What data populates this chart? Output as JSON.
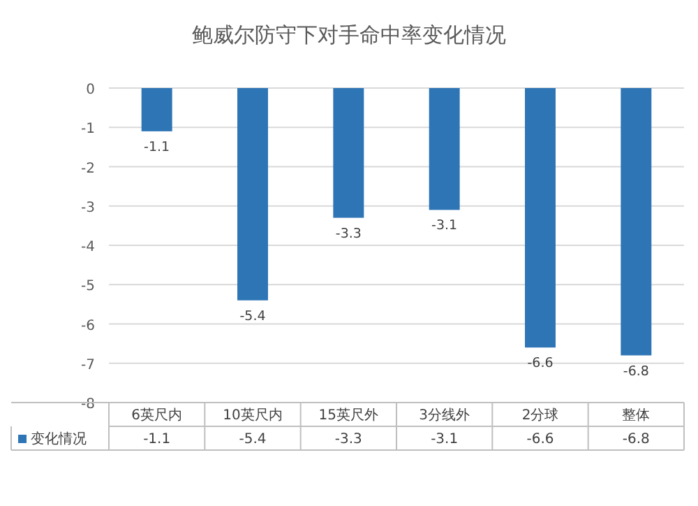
{
  "chart_data": {
    "type": "bar",
    "title": "鲍威尔防守下对手命中率变化情况",
    "categories": [
      "6英尺内",
      "10英尺内",
      "15英尺外",
      "3分线外",
      "2分球",
      "整体"
    ],
    "series": [
      {
        "name": "变化情况",
        "color": "#2e75b6",
        "values": [
          -1.1,
          -5.4,
          -3.3,
          -3.1,
          -6.6,
          -6.8
        ],
        "value_labels": [
          "-1.1",
          "-5.4",
          "-3.3",
          "-3.1",
          "-6.6",
          "-6.8"
        ]
      }
    ],
    "ylim": [
      -8,
      0
    ],
    "yticks": [
      0,
      -1,
      -2,
      -3,
      -4,
      -5,
      -6,
      -7,
      -8
    ],
    "grid": "y",
    "legend": "bottom",
    "annotations": [
      "-1.1",
      "-5.4",
      "-3.3",
      "-3.1",
      "-6.6",
      "-6.8"
    ]
  }
}
